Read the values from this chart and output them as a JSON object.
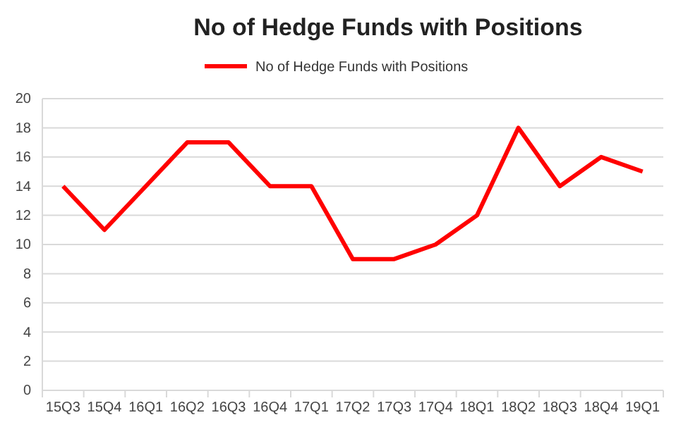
{
  "chart_data": {
    "type": "line",
    "title": "No of Hedge Funds with Positions",
    "categories": [
      "15Q3",
      "15Q4",
      "16Q1",
      "16Q2",
      "16Q3",
      "16Q4",
      "17Q1",
      "17Q2",
      "17Q3",
      "17Q4",
      "18Q1",
      "18Q2",
      "18Q3",
      "18Q4",
      "19Q1"
    ],
    "series": [
      {
        "name": "No of Hedge Funds with Positions",
        "color": "#ff0000",
        "values": [
          14,
          11,
          14,
          17,
          17,
          14,
          14,
          9,
          9,
          10,
          12,
          18,
          14,
          16,
          15
        ]
      }
    ],
    "ylim": [
      0,
      20
    ],
    "yticks": [
      0,
      2,
      4,
      6,
      8,
      10,
      12,
      14,
      16,
      18,
      20
    ],
    "grid": "y",
    "legend": "top",
    "marker": "none",
    "line_style": "solid"
  }
}
